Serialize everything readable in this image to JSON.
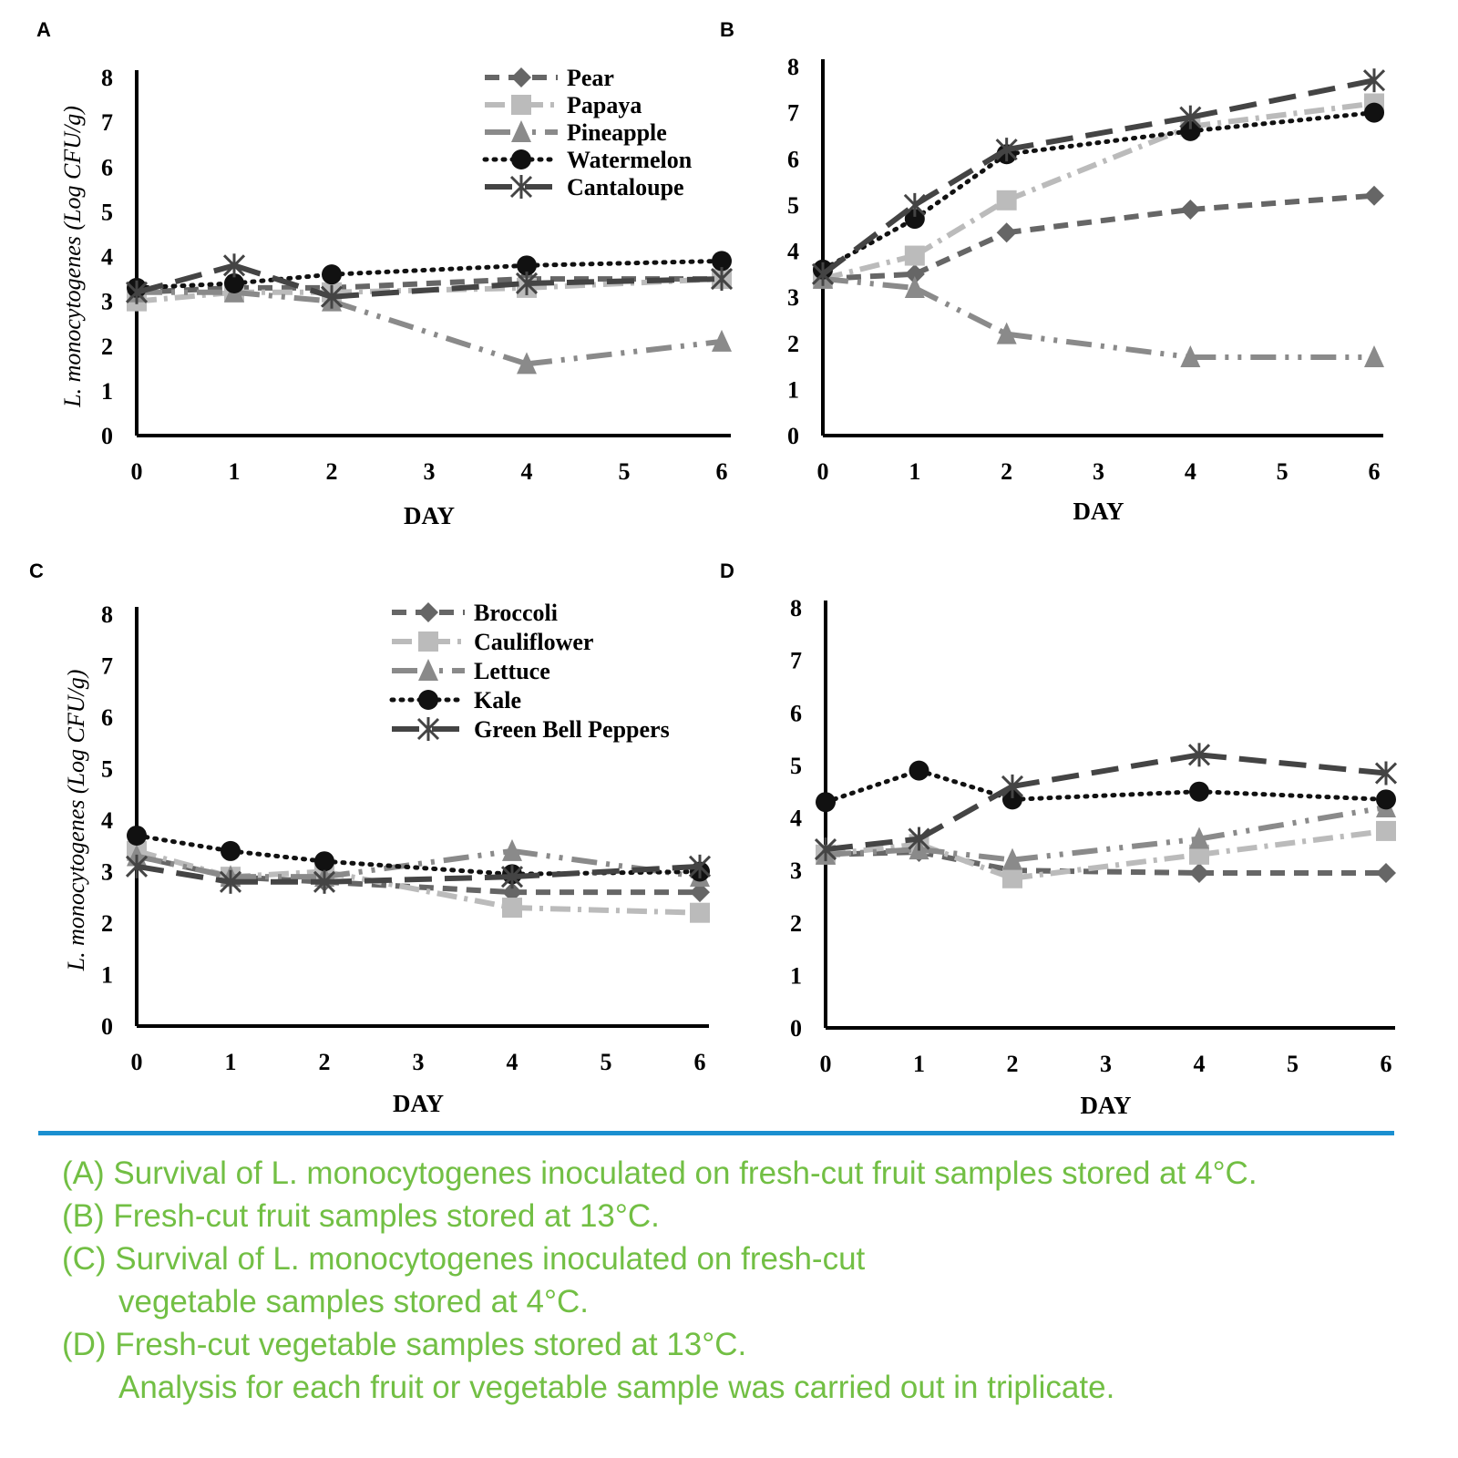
{
  "colors": {
    "caption": "#72bf44",
    "rule": "#1a8fd0"
  },
  "caption": [
    "(A) Survival of L. monocytogenes inoculated on fresh-cut fruit samples stored at 4°C.",
    "(B) Fresh-cut fruit samples stored at 13°C.",
    "(C) Survival of L. monocytogenes inoculated on fresh-cut",
    "vegetable samples stored at 4°C.",
    "(D) Fresh-cut vegetable samples stored at 13°C.",
    "Analysis for each fruit or vegetable sample was carried out in triplicate."
  ],
  "chart_data": [
    {
      "panel": "A",
      "type": "line",
      "xlabel": "DAY",
      "ylabel": "L. monocytogenes (Log CFU/g)",
      "xlim": [
        0,
        6
      ],
      "ylim": [
        0,
        8
      ],
      "xticks": [
        0,
        1,
        2,
        3,
        4,
        5,
        6
      ],
      "yticks": [
        0,
        1,
        2,
        3,
        4,
        5,
        6,
        7,
        8
      ],
      "legend": "top-right",
      "x": [
        0,
        1,
        2,
        4,
        6
      ],
      "series": [
        {
          "name": "Pear",
          "marker": "diamond",
          "values": [
            3.2,
            3.3,
            3.3,
            3.5,
            3.5
          ]
        },
        {
          "name": "Papaya",
          "marker": "square",
          "values": [
            3.0,
            3.2,
            3.2,
            3.3,
            3.5
          ]
        },
        {
          "name": "Pineapple",
          "marker": "triangle",
          "values": [
            3.2,
            3.2,
            3.0,
            1.6,
            2.1
          ]
        },
        {
          "name": "Watermelon",
          "marker": "circle",
          "values": [
            3.3,
            3.4,
            3.6,
            3.8,
            3.9
          ]
        },
        {
          "name": "Cantaloupe",
          "marker": "asterisk",
          "values": [
            3.2,
            3.8,
            3.1,
            3.4,
            3.5
          ]
        }
      ]
    },
    {
      "panel": "B",
      "type": "line",
      "xlabel": "DAY",
      "ylabel": "",
      "xlim": [
        0,
        6
      ],
      "ylim": [
        0,
        8
      ],
      "xticks": [
        0,
        1,
        2,
        3,
        4,
        5,
        6
      ],
      "yticks": [
        0,
        1,
        2,
        3,
        4,
        5,
        6,
        7,
        8
      ],
      "x": [
        0,
        1,
        2,
        4,
        6
      ],
      "series": [
        {
          "marker": "diamond",
          "values": [
            3.4,
            3.5,
            4.4,
            4.9,
            5.2
          ]
        },
        {
          "marker": "square",
          "values": [
            3.4,
            3.9,
            5.1,
            6.7,
            7.2
          ]
        },
        {
          "marker": "triangle",
          "values": [
            3.4,
            3.2,
            2.2,
            1.7,
            1.7
          ]
        },
        {
          "marker": "circle",
          "values": [
            3.6,
            4.7,
            6.1,
            6.6,
            7.0
          ]
        },
        {
          "marker": "asterisk",
          "values": [
            3.5,
            5.0,
            6.2,
            6.9,
            7.7
          ]
        }
      ]
    },
    {
      "panel": "C",
      "type": "line",
      "xlabel": "DAY",
      "ylabel": "L. monocytogenes (Log CFU/g)",
      "xlim": [
        0,
        6
      ],
      "ylim": [
        0,
        8
      ],
      "xticks": [
        0,
        1,
        2,
        3,
        4,
        5,
        6
      ],
      "yticks": [
        0,
        1,
        2,
        3,
        4,
        5,
        6,
        7,
        8
      ],
      "legend": "top-right",
      "x": [
        0,
        1,
        2,
        4,
        6
      ],
      "series": [
        {
          "name": "Broccoli",
          "marker": "diamond",
          "values": [
            3.3,
            2.9,
            2.8,
            2.6,
            2.6
          ]
        },
        {
          "name": "Cauliflower",
          "marker": "square",
          "values": [
            3.4,
            2.9,
            3.0,
            2.3,
            2.2
          ]
        },
        {
          "name": "Lettuce",
          "marker": "triangle",
          "values": [
            3.3,
            2.9,
            2.9,
            3.4,
            2.9
          ]
        },
        {
          "name": "Kale",
          "marker": "circle",
          "values": [
            3.7,
            3.4,
            3.2,
            2.95,
            3.0
          ]
        },
        {
          "name": "Green Bell Peppers",
          "marker": "asterisk",
          "values": [
            3.1,
            2.8,
            2.8,
            2.9,
            3.1
          ]
        }
      ]
    },
    {
      "panel": "D",
      "type": "line",
      "xlabel": "DAY",
      "ylabel": "",
      "xlim": [
        0,
        6
      ],
      "ylim": [
        0,
        8
      ],
      "xticks": [
        0,
        1,
        2,
        3,
        4,
        5,
        6
      ],
      "yticks": [
        0,
        1,
        2,
        3,
        4,
        5,
        6,
        7,
        8
      ],
      "x": [
        0,
        1,
        2,
        4,
        6
      ],
      "series": [
        {
          "marker": "diamond",
          "values": [
            3.3,
            3.35,
            3.0,
            2.95,
            2.95
          ]
        },
        {
          "marker": "square",
          "values": [
            3.3,
            3.5,
            2.85,
            3.3,
            3.75
          ]
        },
        {
          "marker": "triangle",
          "values": [
            3.3,
            3.4,
            3.2,
            3.6,
            4.2
          ]
        },
        {
          "marker": "circle",
          "values": [
            4.3,
            4.9,
            4.35,
            4.5,
            4.35
          ]
        },
        {
          "marker": "asterisk",
          "values": [
            3.4,
            3.6,
            4.6,
            5.2,
            4.85
          ]
        }
      ]
    }
  ]
}
